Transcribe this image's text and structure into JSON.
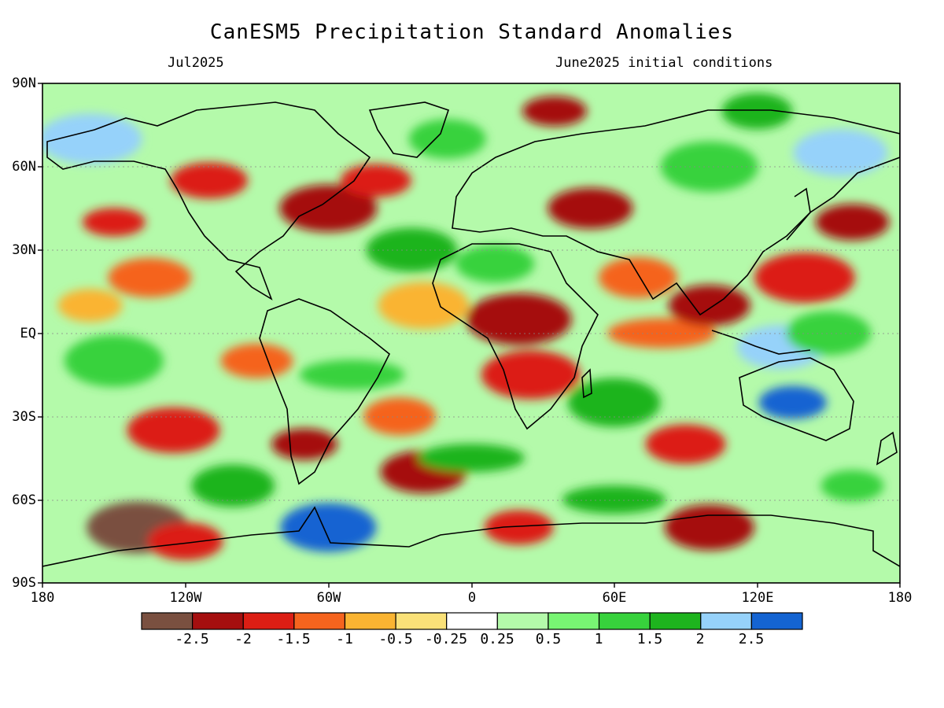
{
  "title": "CanESM5 Precipitation Standard Anomalies",
  "subtitle_left": "Jul2025",
  "subtitle_right": "June2025 initial conditions",
  "y_axis_labels": [
    "90N",
    "60N",
    "30N",
    "EQ",
    "30S",
    "60S",
    "90S"
  ],
  "x_axis_labels": [
    "180",
    "120W",
    "60W",
    "0",
    "60E",
    "120E",
    "180"
  ],
  "colorbar": {
    "colors": [
      "#7a5040",
      "#a50f0f",
      "#dc1e14",
      "#f5641e",
      "#fab432",
      "#fae178",
      "#ffffff",
      "#b4faaa",
      "#78f573",
      "#37d23c",
      "#1eb41e",
      "#96d2fa",
      "#1464d2"
    ],
    "labels": [
      "-2.5",
      "-2",
      "-1.5",
      "-1",
      "-0.5",
      "-0.25",
      "0.25",
      "0.5",
      "1",
      "1.5",
      "2",
      "2.5"
    ]
  },
  "anomaly_patches": [
    {
      "lon": -150,
      "lat": 40,
      "level": "-1.5"
    },
    {
      "lon": -135,
      "lat": 20,
      "level": "-1"
    },
    {
      "lon": -160,
      "lat": 70,
      "level": "2"
    },
    {
      "lon": -110,
      "lat": 55,
      "level": "-1.5"
    },
    {
      "lon": -60,
      "lat": 45,
      "level": "-2"
    },
    {
      "lon": -40,
      "lat": 55,
      "level": "-1.5"
    },
    {
      "lon": -25,
      "lat": 30,
      "level": "1.5"
    },
    {
      "lon": 35,
      "lat": 80,
      "level": "-2"
    },
    {
      "lon": 50,
      "lat": 45,
      "level": "-2"
    },
    {
      "lon": 20,
      "lat": 5,
      "level": "-2"
    },
    {
      "lon": 10,
      "lat": 25,
      "level": "1"
    },
    {
      "lon": 25,
      "lat": -15,
      "level": "-1.5"
    },
    {
      "lon": -90,
      "lat": -10,
      "level": "-1"
    },
    {
      "lon": -125,
      "lat": -35,
      "level": "-1.5"
    },
    {
      "lon": -70,
      "lat": -40,
      "level": "-2"
    },
    {
      "lon": -20,
      "lat": -50,
      "level": "-2"
    },
    {
      "lon": 0,
      "lat": -45,
      "level": "1.5"
    },
    {
      "lon": 90,
      "lat": -40,
      "level": "-1.5"
    },
    {
      "lon": 140,
      "lat": 20,
      "level": "-1.5"
    },
    {
      "lon": 160,
      "lat": 40,
      "level": "-2"
    },
    {
      "lon": 155,
      "lat": 65,
      "level": "2"
    },
    {
      "lon": 135,
      "lat": -25,
      "level": "2.5"
    },
    {
      "lon": 130,
      "lat": -5,
      "level": "2"
    },
    {
      "lon": 80,
      "lat": 0,
      "level": "-1"
    },
    {
      "lon": 100,
      "lat": 10,
      "level": "-2"
    },
    {
      "lon": -140,
      "lat": -70,
      "level": "-2.5"
    },
    {
      "lon": -120,
      "lat": -75,
      "level": "-1.5"
    },
    {
      "lon": -60,
      "lat": -70,
      "level": "2.5"
    },
    {
      "lon": 20,
      "lat": -70,
      "level": "-1.5"
    },
    {
      "lon": 100,
      "lat": -70,
      "level": "-2"
    },
    {
      "lon": 160,
      "lat": -55,
      "level": "1"
    },
    {
      "lon": -100,
      "lat": -55,
      "level": "1.5"
    },
    {
      "lon": 60,
      "lat": -60,
      "level": "1.5"
    },
    {
      "lon": -10,
      "lat": 70,
      "level": "1"
    },
    {
      "lon": 100,
      "lat": 60,
      "level": "1"
    },
    {
      "lon": 120,
      "lat": 80,
      "level": "1.5"
    },
    {
      "lon": -20,
      "lat": 10,
      "level": "-0.5"
    },
    {
      "lon": -160,
      "lat": 10,
      "level": "-0.5"
    },
    {
      "lon": 150,
      "lat": 0,
      "level": "1"
    },
    {
      "lon": -50,
      "lat": -15,
      "level": "1"
    },
    {
      "lon": 70,
      "lat": 20,
      "level": "-1"
    },
    {
      "lon": -150,
      "lat": -10,
      "level": "1"
    },
    {
      "lon": -30,
      "lat": -30,
      "level": "-1"
    },
    {
      "lon": 60,
      "lat": -25,
      "level": "1.5"
    }
  ]
}
